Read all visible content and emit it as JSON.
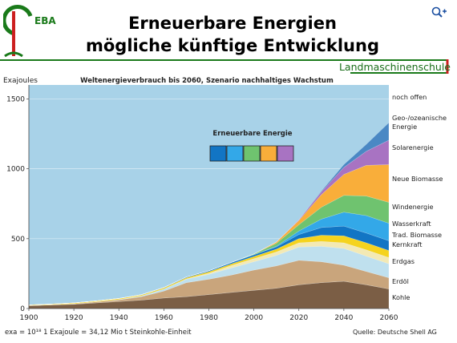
{
  "header": {
    "logo_text": "EBA",
    "title_line1": "Erneuerbare Energien",
    "title_line2": "mögliche künftige Entwicklung",
    "right_label": "Landmaschinenschule"
  },
  "colors": {
    "green": "#1a7a1a",
    "red": "#cc1f1f",
    "chart_background": "#a8d2e8"
  },
  "icons": {
    "zoom": "zoom-plus-icon"
  },
  "chart_data": {
    "type": "area",
    "title": "Weltenergieverbrauch bis 2060, Szenario nachhaltiges Wachstum",
    "ylabel": "Exajoules",
    "xlabel": "",
    "x": [
      1900,
      1910,
      1920,
      1930,
      1940,
      1950,
      1960,
      1970,
      1980,
      1990,
      2000,
      2010,
      2020,
      2030,
      2040,
      2050,
      2060
    ],
    "xticks": [
      "1900",
      "1920",
      "1940",
      "1960",
      "1980",
      "2000",
      "2020",
      "2040",
      "2060"
    ],
    "yticks": [
      "0",
      "500",
      "1000",
      "1500"
    ],
    "xlim": [
      1900,
      2060
    ],
    "ylim": [
      0,
      1600
    ],
    "legend_title": "Erneuerbare Energie",
    "legend_colors": [
      "#1275c4",
      "#33a8e8",
      "#6fc36f",
      "#f9ae3a",
      "#a873c2"
    ],
    "footnote": "exa = 10¹⁸  1 Exajoule = 34,12 Mio t Steinkohle-Einheit",
    "source": "Quelle: Deutsche Shell AG",
    "series": [
      {
        "name": "Kohle",
        "color": "#7b5e45",
        "values": [
          20,
          25,
          30,
          40,
          50,
          60,
          75,
          85,
          100,
          115,
          130,
          145,
          170,
          185,
          195,
          170,
          140
        ]
      },
      {
        "name": "Erdöl",
        "color": "#c9a57c",
        "values": [
          1,
          2,
          4,
          8,
          12,
          25,
          50,
          100,
          110,
          125,
          145,
          160,
          175,
          150,
          115,
          95,
          80
        ]
      },
      {
        "name": "Erdgas",
        "color": "#bfe0ee",
        "values": [
          0,
          0,
          0,
          1,
          2,
          5,
          15,
          25,
          35,
          50,
          60,
          75,
          95,
          110,
          120,
          110,
          100
        ]
      },
      {
        "name": "Kernkraft",
        "color": "#f3e9b4",
        "values": [
          0,
          0,
          0,
          0,
          0,
          0,
          0,
          2,
          8,
          18,
          22,
          25,
          30,
          35,
          40,
          45,
          45
        ]
      },
      {
        "name": "Trad. Biomasse",
        "color": "#f5d31e",
        "values": [
          5,
          5,
          6,
          6,
          7,
          7,
          8,
          9,
          10,
          12,
          15,
          20,
          30,
          45,
          50,
          50,
          50
        ]
      },
      {
        "name": "Wasserkraft",
        "color": "#1275c4",
        "values": [
          0,
          0,
          0,
          0,
          1,
          2,
          3,
          5,
          7,
          10,
          13,
          16,
          30,
          55,
          70,
          70,
          70
        ]
      },
      {
        "name": "Windenergie",
        "color": "#33a8e8",
        "values": [
          0,
          0,
          0,
          0,
          0,
          0,
          0,
          0,
          0,
          0,
          0,
          5,
          25,
          60,
          100,
          125,
          125
        ]
      },
      {
        "name": "Neue Biomasse",
        "color": "#6fc36f",
        "values": [
          0,
          0,
          0,
          0,
          0,
          0,
          0,
          0,
          0,
          0,
          5,
          20,
          45,
          85,
          120,
          140,
          150
        ]
      },
      {
        "name": "Solarenergie",
        "color": "#f9ae3a",
        "values": [
          0,
          0,
          0,
          0,
          0,
          0,
          0,
          0,
          0,
          0,
          0,
          10,
          30,
          90,
          150,
          220,
          270
        ]
      },
      {
        "name": "Geo-/ozeanische Energie",
        "color": "#a873c2",
        "values": [
          0,
          0,
          0,
          0,
          0,
          0,
          0,
          0,
          0,
          0,
          0,
          0,
          5,
          20,
          50,
          100,
          175
        ]
      },
      {
        "name": "noch offen",
        "color": "#4a88c4",
        "values": [
          0,
          0,
          0,
          0,
          0,
          0,
          0,
          0,
          0,
          0,
          0,
          0,
          0,
          5,
          20,
          50,
          125
        ]
      }
    ],
    "label_order_top_to_bottom": [
      "noch offen",
      "Geo-/ozeanische Energie",
      "Solarenergie",
      "Neue Biomasse",
      "Windenergie",
      "Wasserkraft",
      "Trad. Biomasse",
      "Kernkraft",
      "Erdgas",
      "Erdöl",
      "Kohle"
    ]
  }
}
